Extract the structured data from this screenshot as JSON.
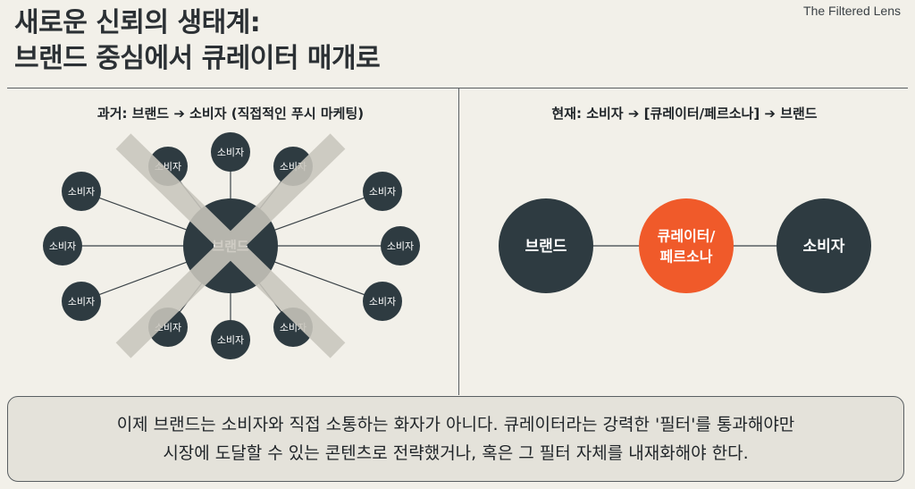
{
  "header": {
    "title_line1": "새로운 신뢰의 생태계:",
    "title_line2": "브랜드 중심에서 큐레이터 매개로",
    "brand": "The Filtered Lens"
  },
  "left_panel": {
    "title": "과거: 브랜드 ➔ 소비자 (직접적인 푸시 마케팅)",
    "hub_label": "브랜드",
    "consumer_label": "소비자",
    "consumer_count": 12,
    "crossed_out": true
  },
  "right_panel": {
    "title": "현재: 소비자 ➔ [큐레이터/페르소나] ➔ 브랜드",
    "nodes": [
      {
        "label_line1": "브랜드",
        "label_line2": ""
      },
      {
        "label_line1": "큐레이터/",
        "label_line2": "페르소나"
      },
      {
        "label_line1": "소비자",
        "label_line2": ""
      }
    ]
  },
  "caption": {
    "line1": "이제 브랜드는 소비자와 직접 소통하는 화자가 아니다. 큐레이터라는 강력한 '필터'를 통과해야만",
    "line2": "시장에 도달할 수 있는 콘텐츠로 전략했거나, 혹은 그 필터 자체를 내재화해야 한다."
  },
  "colors": {
    "node_dark": "#2e3b41",
    "curator_accent": "#f05a2a",
    "cross": "#c9c6bd",
    "line": "#3a4247",
    "background": "#f2f0e9"
  }
}
